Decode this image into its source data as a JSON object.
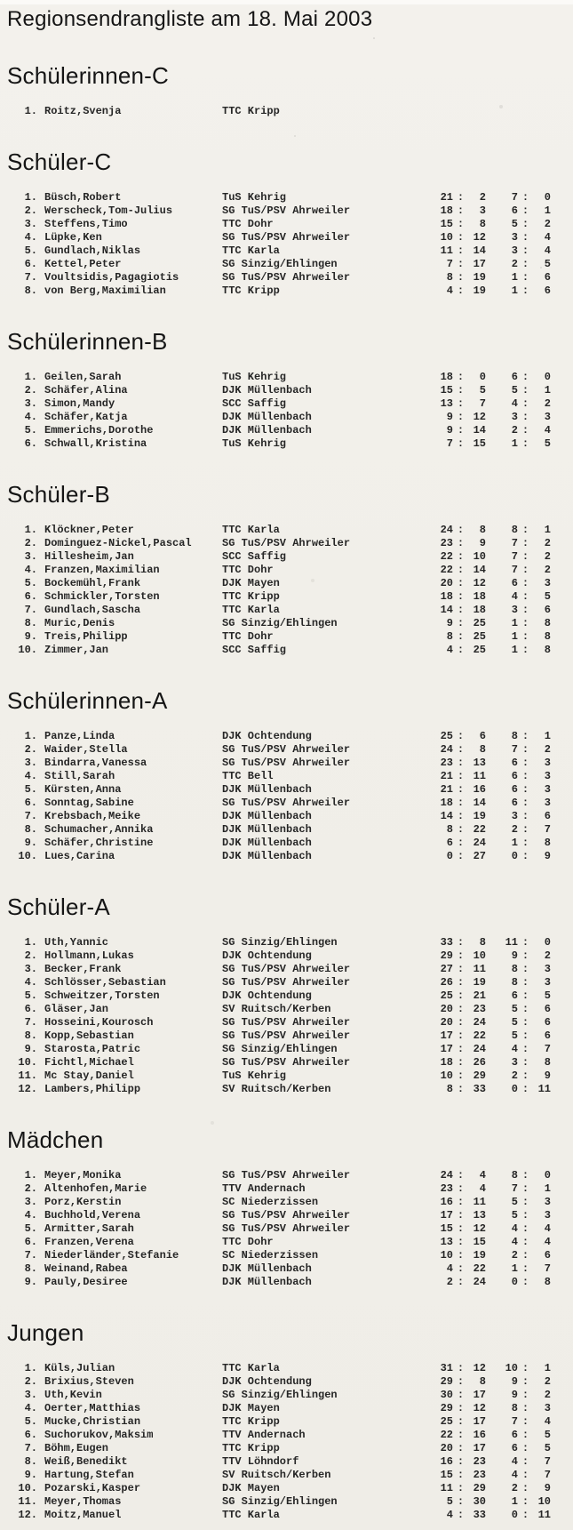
{
  "page": {
    "background": "#f1efe9",
    "text_color": "#262626",
    "heading_color": "#151515"
  },
  "title": "Regionsendrangliste am 18. Mai 2003",
  "score_separator": ":",
  "row_columns": [
    "rank",
    "name",
    "club",
    "games_won",
    "games_lost",
    "matches_won",
    "matches_lost"
  ],
  "sections": [
    {
      "heading": "Schülerinnen-C",
      "rows": [
        [
          "1.",
          "Roitz,Svenja",
          "TTC Kripp",
          null,
          null,
          null,
          null
        ]
      ]
    },
    {
      "heading": "Schüler-C",
      "rows": [
        [
          "1.",
          "Büsch,Robert",
          "TuS Kehrig",
          "21",
          "2",
          "7",
          "0"
        ],
        [
          "2.",
          "Werscheck,Tom-Julius",
          "SG TuS/PSV Ahrweiler",
          "18",
          "3",
          "6",
          "1"
        ],
        [
          "3.",
          "Steffens,Timo",
          "TTC Dohr",
          "15",
          "8",
          "5",
          "2"
        ],
        [
          "4.",
          "Lüpke,Ken",
          "SG TuS/PSV Ahrweiler",
          "10",
          "12",
          "3",
          "4"
        ],
        [
          "5.",
          "Gundlach,Niklas",
          "TTC Karla",
          "11",
          "14",
          "3",
          "4"
        ],
        [
          "6.",
          "Kettel,Peter",
          "SG Sinzig/Ehlingen",
          "7",
          "17",
          "2",
          "5"
        ],
        [
          "7.",
          "Voultsidis,Pagagiotis",
          "SG TuS/PSV Ahrweiler",
          "8",
          "19",
          "1",
          "6"
        ],
        [
          "8.",
          "von Berg,Maximilian",
          "TTC Kripp",
          "4",
          "19",
          "1",
          "6"
        ]
      ]
    },
    {
      "heading": "Schülerinnen-B",
      "rows": [
        [
          "1.",
          "Geilen,Sarah",
          "TuS Kehrig",
          "18",
          "0",
          "6",
          "0"
        ],
        [
          "2.",
          "Schäfer,Alina",
          "DJK Müllenbach",
          "15",
          "5",
          "5",
          "1"
        ],
        [
          "3.",
          "Simon,Mandy",
          "SCC Saffig",
          "13",
          "7",
          "4",
          "2"
        ],
        [
          "4.",
          "Schäfer,Katja",
          "DJK Müllenbach",
          "9",
          "12",
          "3",
          "3"
        ],
        [
          "5.",
          "Emmerichs,Dorothe",
          "DJK Müllenbach",
          "9",
          "14",
          "2",
          "4"
        ],
        [
          "6.",
          "Schwall,Kristina",
          "TuS Kehrig",
          "7",
          "15",
          "1",
          "5"
        ]
      ]
    },
    {
      "heading": "Schüler-B",
      "rows": [
        [
          "1.",
          "Klöckner,Peter",
          "TTC Karla",
          "24",
          "8",
          "8",
          "1"
        ],
        [
          "2.",
          "Dominguez-Nickel,Pascal",
          "SG TuS/PSV Ahrweiler",
          "23",
          "9",
          "7",
          "2"
        ],
        [
          "3.",
          "Hillesheim,Jan",
          "SCC Saffig",
          "22",
          "10",
          "7",
          "2"
        ],
        [
          "4.",
          "Franzen,Maximilian",
          "TTC Dohr",
          "22",
          "14",
          "7",
          "2"
        ],
        [
          "5.",
          "Bockemühl,Frank",
          "DJK Mayen",
          "20",
          "12",
          "6",
          "3"
        ],
        [
          "6.",
          "Schmickler,Torsten",
          "TTC Kripp",
          "18",
          "18",
          "4",
          "5"
        ],
        [
          "7.",
          "Gundlach,Sascha",
          "TTC Karla",
          "14",
          "18",
          "3",
          "6"
        ],
        [
          "8.",
          "Muric,Denis",
          "SG Sinzig/Ehlingen",
          "9",
          "25",
          "1",
          "8"
        ],
        [
          "9.",
          "Treis,Philipp",
          "TTC Dohr",
          "8",
          "25",
          "1",
          "8"
        ],
        [
          "10.",
          "Zimmer,Jan",
          "SCC Saffig",
          "4",
          "25",
          "1",
          "8"
        ]
      ]
    },
    {
      "heading": "Schülerinnen-A",
      "rows": [
        [
          "1.",
          "Panze,Linda",
          "DJK Ochtendung",
          "25",
          "6",
          "8",
          "1"
        ],
        [
          "2.",
          "Waider,Stella",
          "SG TuS/PSV Ahrweiler",
          "24",
          "8",
          "7",
          "2"
        ],
        [
          "3.",
          "Bindarra,Vanessa",
          "SG TuS/PSV Ahrweiler",
          "23",
          "13",
          "6",
          "3"
        ],
        [
          "4.",
          "Still,Sarah",
          "TTC Bell",
          "21",
          "11",
          "6",
          "3"
        ],
        [
          "5.",
          "Kürsten,Anna",
          "DJK Müllenbach",
          "21",
          "16",
          "6",
          "3"
        ],
        [
          "6.",
          "Sonntag,Sabine",
          "SG TuS/PSV Ahrweiler",
          "18",
          "14",
          "6",
          "3"
        ],
        [
          "7.",
          "Krebsbach,Meike",
          "DJK Müllenbach",
          "14",
          "19",
          "3",
          "6"
        ],
        [
          "8.",
          "Schumacher,Annika",
          "DJK Müllenbach",
          "8",
          "22",
          "2",
          "7"
        ],
        [
          "9.",
          "Schäfer,Christine",
          "DJK Müllenbach",
          "6",
          "24",
          "1",
          "8"
        ],
        [
          "10.",
          "Lues,Carina",
          "DJK Müllenbach",
          "0",
          "27",
          "0",
          "9"
        ]
      ]
    },
    {
      "heading": "Schüler-A",
      "rows": [
        [
          "1.",
          "Uth,Yannic",
          "SG Sinzig/Ehlingen",
          "33",
          "8",
          "11",
          "0"
        ],
        [
          "2.",
          "Hollmann,Lukas",
          "DJK Ochtendung",
          "29",
          "10",
          "9",
          "2"
        ],
        [
          "3.",
          "Becker,Frank",
          "SG TuS/PSV Ahrweiler",
          "27",
          "11",
          "8",
          "3"
        ],
        [
          "4.",
          "Schlösser,Sebastian",
          "SG TuS/PSV Ahrweiler",
          "26",
          "19",
          "8",
          "3"
        ],
        [
          "5.",
          "Schweitzer,Torsten",
          "DJK Ochtendung",
          "25",
          "21",
          "6",
          "5"
        ],
        [
          "6.",
          "Gläser,Jan",
          "SV Ruitsch/Kerben",
          "20",
          "23",
          "5",
          "6"
        ],
        [
          "7.",
          "Hosseini,Kourosch",
          "SG TuS/PSV Ahrweiler",
          "20",
          "24",
          "5",
          "6"
        ],
        [
          "8.",
          "Kopp,Sebastian",
          "SG TuS/PSV Ahrweiler",
          "17",
          "22",
          "5",
          "6"
        ],
        [
          "9.",
          "Starosta,Patric",
          "SG Sinzig/Ehlingen",
          "17",
          "24",
          "4",
          "7"
        ],
        [
          "10.",
          "Fichtl,Michael",
          "SG TuS/PSV Ahrweiler",
          "18",
          "26",
          "3",
          "8"
        ],
        [
          "11.",
          "Mc Stay,Daniel",
          "TuS Kehrig",
          "10",
          "29",
          "2",
          "9"
        ],
        [
          "12.",
          "Lambers,Philipp",
          "SV Ruitsch/Kerben",
          "8",
          "33",
          "0",
          "11"
        ]
      ]
    },
    {
      "heading": "Mädchen",
      "rows": [
        [
          "1.",
          "Meyer,Monika",
          "SG TuS/PSV Ahrweiler",
          "24",
          "4",
          "8",
          "0"
        ],
        [
          "2.",
          "Altenhofen,Marie",
          "TTV Andernach",
          "23",
          "4",
          "7",
          "1"
        ],
        [
          "3.",
          "Porz,Kerstin",
          "SC Niederzissen",
          "16",
          "11",
          "5",
          "3"
        ],
        [
          "4.",
          "Buchhold,Verena",
          "SG TuS/PSV Ahrweiler",
          "17",
          "13",
          "5",
          "3"
        ],
        [
          "5.",
          "Armitter,Sarah",
          "SG TuS/PSV Ahrweiler",
          "15",
          "12",
          "4",
          "4"
        ],
        [
          "6.",
          "Franzen,Verena",
          "TTC Dohr",
          "13",
          "15",
          "4",
          "4"
        ],
        [
          "7.",
          "Niederländer,Stefanie",
          "SC Niederzissen",
          "10",
          "19",
          "2",
          "6"
        ],
        [
          "8.",
          "Weinand,Rabea",
          "DJK Müllenbach",
          "4",
          "22",
          "1",
          "7"
        ],
        [
          "9.",
          "Pauly,Desiree",
          "DJK Müllenbach",
          "2",
          "24",
          "0",
          "8"
        ]
      ]
    },
    {
      "heading": "Jungen",
      "rows": [
        [
          "1.",
          "Küls,Julian",
          "TTC Karla",
          "31",
          "12",
          "10",
          "1"
        ],
        [
          "2.",
          "Brixius,Steven",
          "DJK Ochtendung",
          "29",
          "8",
          "9",
          "2"
        ],
        [
          "3.",
          "Uth,Kevin",
          "SG Sinzig/Ehlingen",
          "30",
          "17",
          "9",
          "2"
        ],
        [
          "4.",
          "Oerter,Matthias",
          "DJK Mayen",
          "29",
          "12",
          "8",
          "3"
        ],
        [
          "5.",
          "Mucke,Christian",
          "TTC Kripp",
          "25",
          "17",
          "7",
          "4"
        ],
        [
          "6.",
          "Suchorukov,Maksim",
          "TTV Andernach",
          "22",
          "16",
          "6",
          "5"
        ],
        [
          "7.",
          "Böhm,Eugen",
          "TTC Kripp",
          "20",
          "17",
          "6",
          "5"
        ],
        [
          "8.",
          "Weiß,Benedikt",
          "TTV Löhndorf",
          "16",
          "23",
          "4",
          "7"
        ],
        [
          "9.",
          "Hartung,Stefan",
          "SV Ruitsch/Kerben",
          "15",
          "23",
          "4",
          "7"
        ],
        [
          "10.",
          "Pozarski,Kasper",
          "DJK Mayen",
          "11",
          "29",
          "2",
          "9"
        ],
        [
          "11.",
          "Meyer,Thomas",
          "SG Sinzig/Ehlingen",
          "5",
          "30",
          "1",
          "10"
        ],
        [
          "12.",
          "Moitz,Manuel",
          "TTC Karla",
          "4",
          "33",
          "0",
          "11"
        ]
      ]
    }
  ]
}
